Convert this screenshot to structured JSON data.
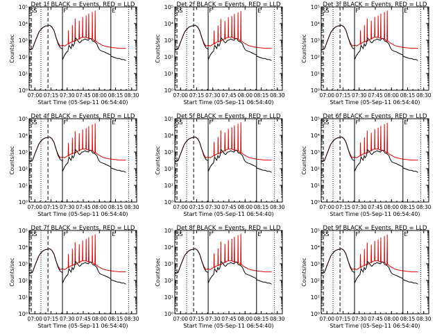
{
  "colors": {
    "events": "#000000",
    "lld": "#e00000",
    "axes": "#000000",
    "background": "#ffffff"
  },
  "chart_data": [
    {
      "type": "line",
      "title": "Det 1f BLACK = Events, RED = LLD",
      "ylabel": "Counts/sec",
      "xlabel": "Start Time (05-Sep-11 06:54:40)",
      "peak_scale": 1.0
    },
    {
      "type": "line",
      "title": "Det 2f BLACK = Events, RED = LLD",
      "ylabel": "Counts/sec",
      "xlabel": "Start Time (05-Sep-11 06:54:40)",
      "peak_scale": 0.95
    },
    {
      "type": "line",
      "title": "Det 3f BLACK = Events, RED = LLD",
      "ylabel": "Counts/sec",
      "xlabel": "Start Time (05-Sep-11 06:54:40)",
      "peak_scale": 1.0
    },
    {
      "type": "line",
      "title": "Det 4f BLACK = Events, RED = LLD",
      "ylabel": "Counts/sec",
      "xlabel": "Start Time (05-Sep-11 06:54:40)",
      "peak_scale": 0.9
    },
    {
      "type": "line",
      "title": "Det 5f BLACK = Events, RED = LLD",
      "ylabel": "Counts/sec",
      "xlabel": "Start Time (05-Sep-11 06:54:40)",
      "peak_scale": 1.0
    },
    {
      "type": "line",
      "title": "Det 6f BLACK = Events, RED = LLD",
      "ylabel": "Counts/sec",
      "xlabel": "Start Time (05-Sep-11 06:54:40)",
      "peak_scale": 0.95
    },
    {
      "type": "line",
      "title": "Det 7f BLACK = Events, RED = LLD",
      "ylabel": "Counts/sec",
      "xlabel": "Start Time (05-Sep-11 06:54:40)",
      "peak_scale": 1.0
    },
    {
      "type": "line",
      "title": "Det 8f BLACK = Events, RED = LLD",
      "ylabel": "Counts/sec",
      "xlabel": "Start Time (05-Sep-11 06:54:40)",
      "peak_scale": 1.05
    },
    {
      "type": "line",
      "title": "Det 9f BLACK = Events, RED = LLD",
      "ylabel": "Counts/sec",
      "xlabel": "Start Time (05-Sep-11 06:54:40)",
      "peak_scale": 0.95
    }
  ],
  "shared_axes": {
    "x_ticks": [
      "07:00",
      "07:15",
      "07:30",
      "07:45",
      "08:00",
      "08:15",
      "08:30"
    ],
    "x_tick_minutes": [
      5.33,
      20.33,
      35.33,
      50.33,
      65.33,
      80.33,
      95.33
    ],
    "xlim_minutes": [
      0,
      100
    ],
    "y_scale": "log",
    "y_ticks": [
      "10⁰",
      "10¹",
      "10²",
      "10³",
      "10⁴",
      "10⁵"
    ],
    "y_tick_values": [
      1,
      10,
      100,
      1000,
      10000,
      100000
    ],
    "ylim": [
      1,
      100000
    ],
    "vertical_markers": [
      {
        "t": 2.0,
        "style": "dashed"
      },
      {
        "t": 11.0,
        "style": "dotted"
      },
      {
        "t": 17.5,
        "style": "dashed"
      },
      {
        "t": 31.0,
        "style": "solid"
      },
      {
        "t": 76.0,
        "style": "solid"
      },
      {
        "t": 92.5,
        "style": "dotted"
      }
    ],
    "top_labels": [
      {
        "t": 0.5,
        "text": "S"
      },
      {
        "t": 3.5,
        "text": "S"
      },
      {
        "t": 31.2,
        "text": "F"
      },
      {
        "t": 76.3,
        "text": "E"
      }
    ],
    "events_series": [
      [
        0,
        250
      ],
      [
        3,
        300
      ],
      [
        6,
        1000
      ],
      [
        9,
        3000
      ],
      [
        11,
        4500
      ],
      [
        13,
        6000
      ],
      [
        15,
        7000
      ],
      [
        17,
        7500
      ],
      [
        19,
        8000
      ],
      [
        21,
        6500
      ],
      [
        23,
        4000
      ],
      [
        25,
        1500
      ],
      [
        27,
        600
      ],
      [
        29,
        350
      ],
      [
        30.9,
        300
      ],
      [
        31.1,
        70
      ],
      [
        33,
        130
      ],
      [
        35,
        200
      ],
      [
        36,
        220
      ],
      [
        37,
        500
      ],
      [
        38,
        400
      ],
      [
        39,
        320
      ],
      [
        40,
        600
      ],
      [
        41,
        450
      ],
      [
        42,
        600
      ],
      [
        43,
        1400
      ],
      [
        44,
        1200
      ],
      [
        45,
        1000
      ],
      [
        46,
        800
      ],
      [
        47,
        700
      ],
      [
        48,
        800
      ],
      [
        49,
        1000
      ],
      [
        50,
        1000
      ],
      [
        51,
        1100
      ],
      [
        52,
        1200
      ],
      [
        53,
        1100
      ],
      [
        55,
        1000
      ],
      [
        56,
        1200
      ],
      [
        57,
        1300
      ],
      [
        58,
        1200
      ],
      [
        59,
        900
      ],
      [
        61,
        800
      ],
      [
        62,
        700
      ],
      [
        63,
        600
      ],
      [
        64,
        400
      ],
      [
        65,
        300
      ],
      [
        66,
        250
      ],
      [
        68,
        220
      ],
      [
        70,
        200
      ],
      [
        72,
        170
      ],
      [
        74,
        150
      ],
      [
        75.9,
        130
      ],
      [
        76.1,
        110
      ],
      [
        78,
        100
      ],
      [
        80,
        90
      ],
      [
        82,
        80
      ],
      [
        84,
        80
      ],
      [
        86,
        70
      ],
      [
        88,
        70
      ],
      [
        90,
        60
      ]
    ],
    "lld_series": [
      [
        0,
        250
      ],
      [
        3,
        300
      ],
      [
        6,
        1000
      ],
      [
        9,
        3000
      ],
      [
        11,
        4500
      ],
      [
        13,
        6000
      ],
      [
        15,
        7000
      ],
      [
        17,
        7500
      ],
      [
        19,
        8000
      ],
      [
        21,
        6500
      ],
      [
        23,
        4000
      ],
      [
        25,
        1500
      ],
      [
        27,
        700
      ],
      [
        29,
        450
      ],
      [
        31,
        500
      ],
      [
        33,
        450
      ],
      [
        35,
        550
      ],
      [
        37,
        600
      ],
      [
        38,
        700
      ],
      [
        40,
        800
      ],
      [
        42,
        900
      ],
      [
        44,
        1000
      ],
      [
        46,
        1200
      ],
      [
        48,
        1400
      ],
      [
        50,
        1500
      ],
      [
        52,
        1500
      ],
      [
        54,
        1400
      ],
      [
        56,
        1300
      ],
      [
        58,
        1200
      ],
      [
        60,
        1000
      ],
      [
        62,
        900
      ],
      [
        64,
        700
      ],
      [
        66,
        600
      ],
      [
        68,
        500
      ],
      [
        70,
        450
      ],
      [
        72,
        420
      ],
      [
        74,
        400
      ],
      [
        76,
        380
      ],
      [
        78,
        360
      ],
      [
        80,
        350
      ],
      [
        82,
        340
      ],
      [
        84,
        330
      ],
      [
        86,
        330
      ],
      [
        88,
        330
      ],
      [
        90,
        330
      ]
    ],
    "lld_spikes": [
      {
        "t": 36.5,
        "peak": 4000
      },
      {
        "t": 40.2,
        "peak": 8000
      },
      {
        "t": 42.8,
        "peak": 20000
      },
      {
        "t": 46.6,
        "peak": 15000
      },
      {
        "t": 49.8,
        "peak": 25000
      },
      {
        "t": 53.0,
        "peak": 30000
      },
      {
        "t": 55.4,
        "peak": 40000
      },
      {
        "t": 58.8,
        "peak": 50000
      },
      {
        "t": 61.4,
        "peak": 60000
      }
    ]
  }
}
